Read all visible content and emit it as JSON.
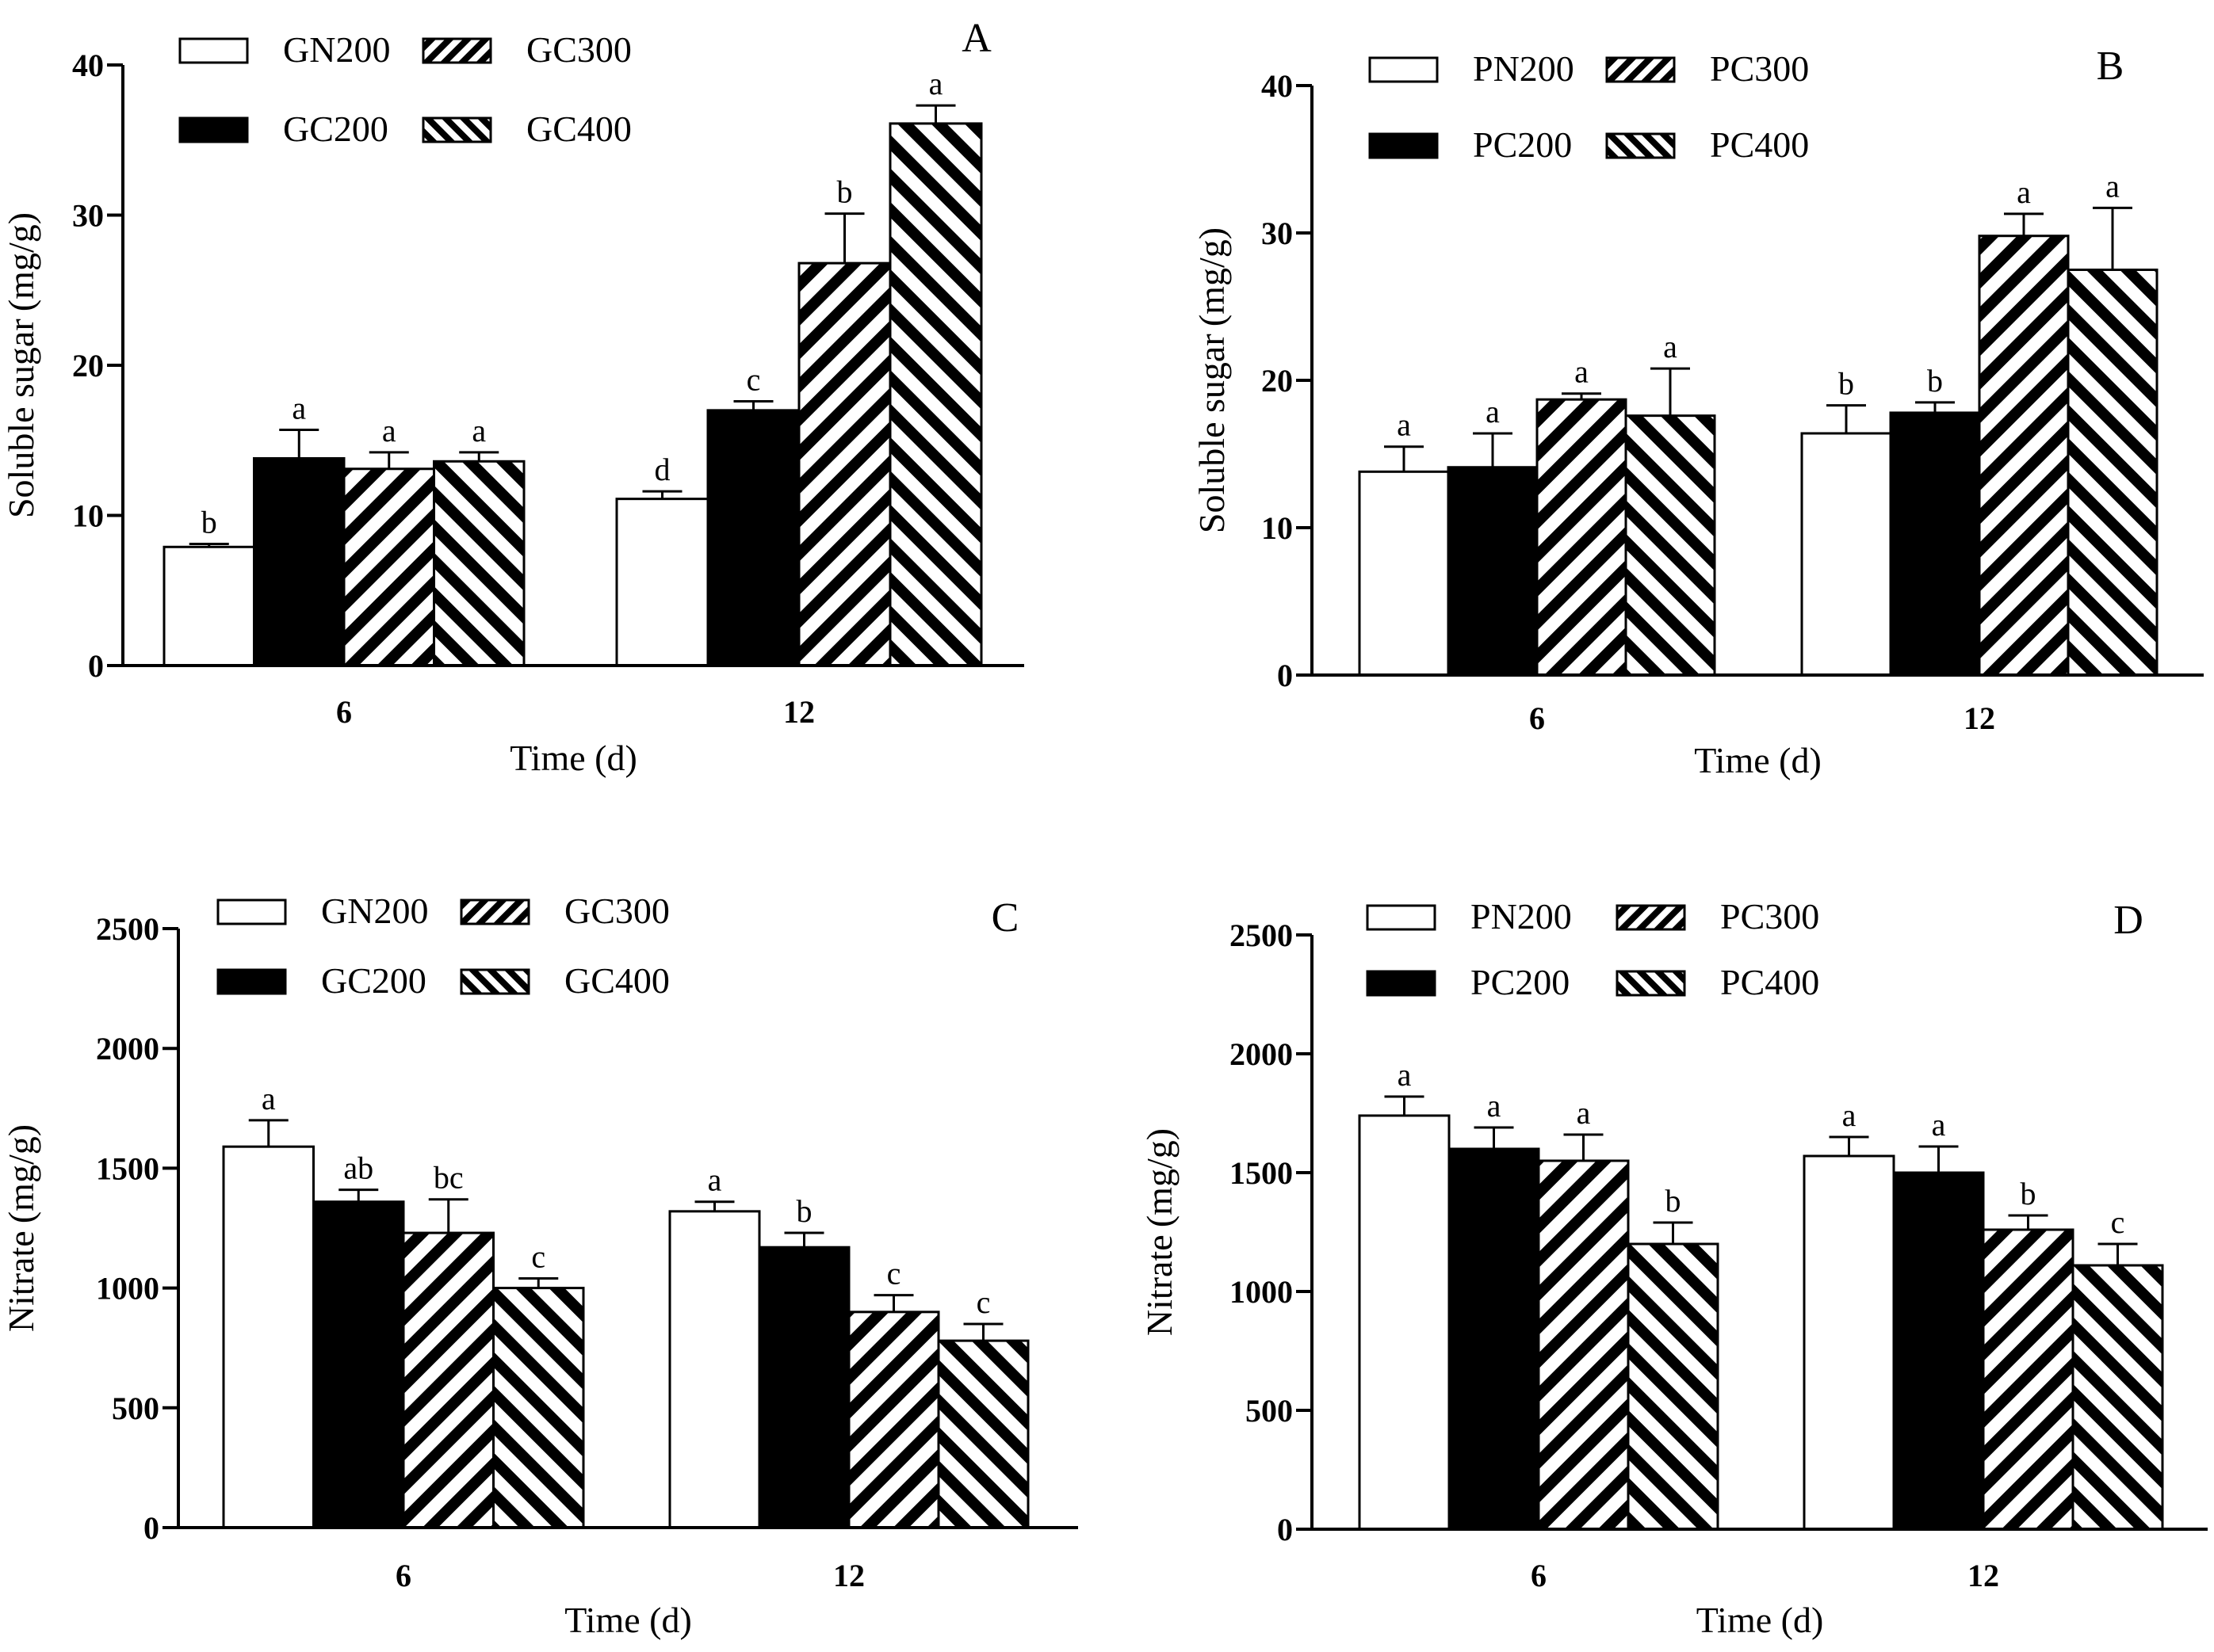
{
  "colors": {
    "ink": "#000000",
    "paper": "#ffffff"
  },
  "chart_data": [
    {
      "type": "bar",
      "panel": "A",
      "categories": [
        "6",
        "12"
      ],
      "xlabel": "Time (d)",
      "ylabel": "Soluble sugar (mg/g)",
      "ylim": [
        0,
        40
      ],
      "yticks": [
        0,
        10,
        20,
        30,
        40
      ],
      "legend_position": "top-left",
      "series": [
        {
          "name": "GN200",
          "pattern": "white",
          "values": [
            7.9,
            11.1
          ],
          "errors": [
            0.2,
            0.5
          ],
          "letters": [
            "b",
            "d"
          ]
        },
        {
          "name": "GC200",
          "pattern": "black",
          "values": [
            13.8,
            17.0
          ],
          "errors": [
            1.9,
            0.6
          ],
          "letters": [
            "a",
            "c"
          ]
        },
        {
          "name": "GC300",
          "pattern": "stripe-up",
          "values": [
            13.1,
            26.8
          ],
          "errors": [
            1.1,
            3.3
          ],
          "letters": [
            "a",
            "b"
          ]
        },
        {
          "name": "GC400",
          "pattern": "stripe-down",
          "values": [
            13.6,
            36.1
          ],
          "errors": [
            0.6,
            1.2
          ],
          "letters": [
            "a",
            "a"
          ]
        }
      ]
    },
    {
      "type": "bar",
      "panel": "B",
      "categories": [
        "6",
        "12"
      ],
      "xlabel": "Time (d)",
      "ylabel": "Soluble sugar (mg/g)",
      "ylim": [
        0,
        40
      ],
      "yticks": [
        0,
        10,
        20,
        30,
        40
      ],
      "legend_position": "top-left",
      "series": [
        {
          "name": "PN200",
          "pattern": "white",
          "values": [
            13.8,
            16.4
          ],
          "errors": [
            1.7,
            1.9
          ],
          "letters": [
            "a",
            "b"
          ]
        },
        {
          "name": "PC200",
          "pattern": "black",
          "values": [
            14.1,
            17.8
          ],
          "errors": [
            2.3,
            0.7
          ],
          "letters": [
            "a",
            "b"
          ]
        },
        {
          "name": "PC300",
          "pattern": "stripe-up",
          "values": [
            18.7,
            29.8
          ],
          "errors": [
            0.4,
            1.5
          ],
          "letters": [
            "a",
            "a"
          ]
        },
        {
          "name": "PC400",
          "pattern": "stripe-down",
          "values": [
            17.6,
            27.5
          ],
          "errors": [
            3.2,
            4.2
          ],
          "letters": [
            "a",
            "a"
          ]
        }
      ]
    },
    {
      "type": "bar",
      "panel": "C",
      "categories": [
        "6",
        "12"
      ],
      "xlabel": "Time (d)",
      "ylabel": "Nitrate (mg/g)",
      "ylim": [
        0,
        2500
      ],
      "yticks": [
        0,
        500,
        1000,
        1500,
        2000,
        2500
      ],
      "legend_position": "top-left",
      "series": [
        {
          "name": "GN200",
          "pattern": "white",
          "values": [
            1590,
            1320
          ],
          "errors": [
            110,
            40
          ],
          "letters": [
            "a",
            "a"
          ]
        },
        {
          "name": "GC200",
          "pattern": "black",
          "values": [
            1360,
            1170
          ],
          "errors": [
            50,
            60
          ],
          "letters": [
            "ab",
            "b"
          ]
        },
        {
          "name": "GC300",
          "pattern": "stripe-up",
          "values": [
            1230,
            900
          ],
          "errors": [
            140,
            70
          ],
          "letters": [
            "bc",
            "c"
          ]
        },
        {
          "name": "GC400",
          "pattern": "stripe-down",
          "values": [
            1000,
            780
          ],
          "errors": [
            40,
            70
          ],
          "letters": [
            "c",
            "c"
          ]
        }
      ]
    },
    {
      "type": "bar",
      "panel": "D",
      "categories": [
        "6",
        "12"
      ],
      "xlabel": "Time (d)",
      "ylabel": "Nitrate (mg/g)",
      "ylim": [
        0,
        2500
      ],
      "yticks": [
        0,
        500,
        1000,
        1500,
        2000,
        2500
      ],
      "legend_position": "top-left",
      "series": [
        {
          "name": "PN200",
          "pattern": "white",
          "values": [
            1740,
            1570
          ],
          "errors": [
            80,
            80
          ],
          "letters": [
            "a",
            "a"
          ]
        },
        {
          "name": "PC200",
          "pattern": "black",
          "values": [
            1600,
            1500
          ],
          "errors": [
            90,
            110
          ],
          "letters": [
            "a",
            "a"
          ]
        },
        {
          "name": "PC300",
          "pattern": "stripe-up",
          "values": [
            1550,
            1260
          ],
          "errors": [
            110,
            60
          ],
          "letters": [
            "a",
            "b"
          ]
        },
        {
          "name": "PC400",
          "pattern": "stripe-down",
          "values": [
            1200,
            1110
          ],
          "errors": [
            90,
            90
          ],
          "letters": [
            "b",
            "c"
          ]
        }
      ]
    }
  ]
}
